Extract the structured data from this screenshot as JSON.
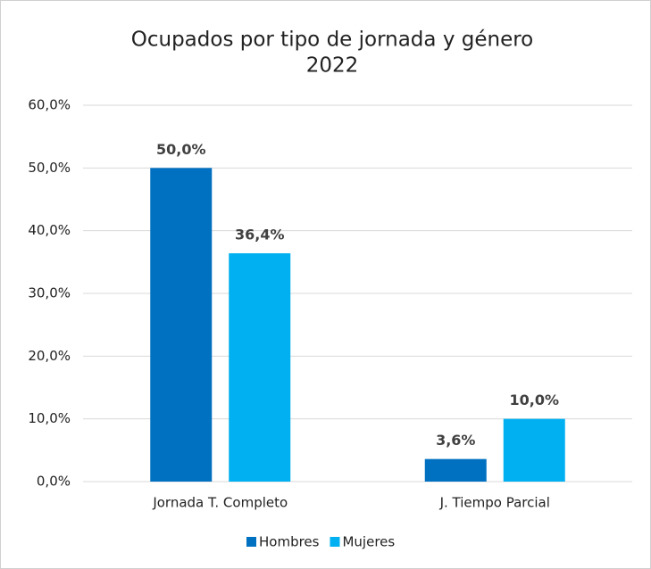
{
  "chart_data": {
    "type": "bar",
    "title": "Ocupados por tipo de jornada y género",
    "subtitle": "2022",
    "categories": [
      "Jornada T. Completo",
      "J. Tiempo Parcial"
    ],
    "series": [
      {
        "name": "Hombres",
        "color": "#0070c0",
        "values": [
          50.0,
          3.6
        ],
        "value_labels": [
          "50,0%",
          "3,6%"
        ]
      },
      {
        "name": "Mujeres",
        "color": "#00b0f0",
        "values": [
          36.4,
          10.0
        ],
        "value_labels": [
          "36,4%",
          "10,0%"
        ]
      }
    ],
    "ylim": [
      0,
      60
    ],
    "yticks": [
      {
        "value": 0,
        "label": "0,0%"
      },
      {
        "value": 10,
        "label": "10,0%"
      },
      {
        "value": 20,
        "label": "20,0%"
      },
      {
        "value": 30,
        "label": "30,0%"
      },
      {
        "value": 40,
        "label": "40,0%"
      },
      {
        "value": 50,
        "label": "50,0%"
      },
      {
        "value": 60,
        "label": "60,0%"
      }
    ],
    "grid": true,
    "legend": "bottom"
  }
}
